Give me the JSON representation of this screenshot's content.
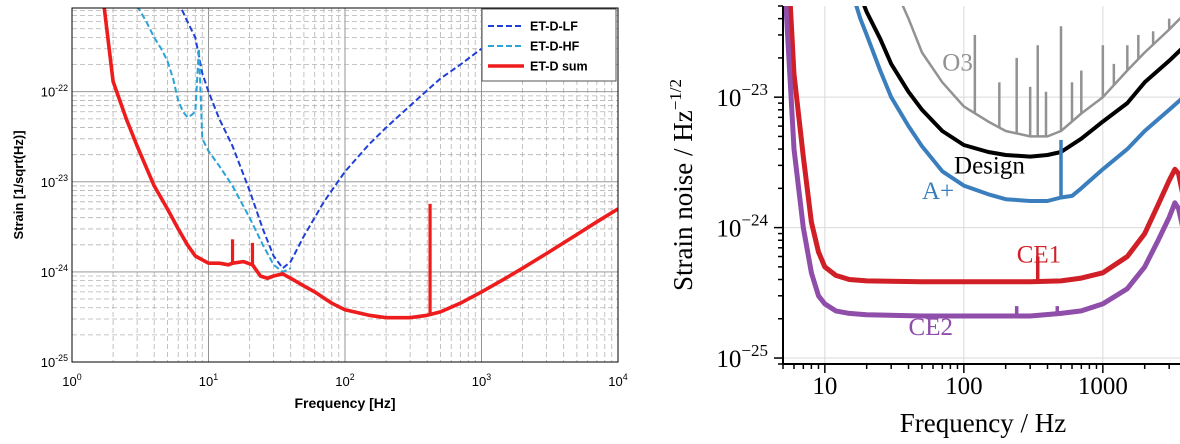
{
  "chart_data": [
    {
      "type": "line",
      "title": "",
      "xlabel": "Frequency [Hz]",
      "ylabel": "Strain [1/sqrt(Hz)]",
      "xscale": "log",
      "yscale": "log",
      "xlim": [
        1,
        10000
      ],
      "ylim": [
        1e-25,
        8.5e-22
      ],
      "grid": true,
      "legend": "top-right",
      "x_ticks": [
        {
          "v": 1,
          "base": "10",
          "exp": "0"
        },
        {
          "v": 10,
          "base": "10",
          "exp": "1"
        },
        {
          "v": 100,
          "base": "10",
          "exp": "2"
        },
        {
          "v": 1000,
          "base": "10",
          "exp": "3"
        },
        {
          "v": 10000,
          "base": "10",
          "exp": "4"
        }
      ],
      "y_ticks": [
        {
          "v": 1e-25,
          "base": "10",
          "exp": "-25"
        },
        {
          "v": 1e-24,
          "base": "10",
          "exp": "-24"
        },
        {
          "v": 1e-23,
          "base": "10",
          "exp": "-23"
        },
        {
          "v": 1e-22,
          "base": "10",
          "exp": "-22"
        }
      ],
      "series": [
        {
          "name": "ET-D-LF",
          "color": "#1f3fd8",
          "dash": true,
          "points": [
            [
              6,
              1e-21
            ],
            [
              7,
              6e-22
            ],
            [
              8,
              4e-22
            ],
            [
              9,
              1.6e-22
            ],
            [
              10,
              1e-22
            ],
            [
              12,
              5e-23
            ],
            [
              15,
              2.5e-23
            ],
            [
              20,
              8e-24
            ],
            [
              25,
              3e-24
            ],
            [
              30,
              1.5e-24
            ],
            [
              35,
              1.1e-24
            ],
            [
              40,
              1.3e-24
            ],
            [
              50,
              2.5e-24
            ],
            [
              70,
              6e-24
            ],
            [
              100,
              1.3e-23
            ],
            [
              150,
              2.6e-23
            ],
            [
              200,
              4e-23
            ],
            [
              300,
              7e-23
            ],
            [
              500,
              1.4e-22
            ],
            [
              700,
              2e-22
            ],
            [
              1000,
              3e-22
            ]
          ]
        },
        {
          "name": "ET-D-HF",
          "color": "#2aa3d6",
          "dash": true,
          "points": [
            [
              3,
              9e-22
            ],
            [
              3.5,
              6e-22
            ],
            [
              4,
              4e-22
            ],
            [
              4.5,
              3e-22
            ],
            [
              5,
              2.2e-22
            ],
            [
              5.5,
              1.4e-22
            ],
            [
              6,
              8e-23
            ],
            [
              6.5,
              6e-23
            ],
            [
              7,
              5.2e-23
            ],
            [
              7.5,
              5.5e-23
            ],
            [
              8,
              6e-23
            ],
            [
              8.5,
              3e-22
            ],
            [
              9,
              3e-23
            ],
            [
              10,
              2.2e-23
            ],
            [
              12,
              1.5e-23
            ],
            [
              15,
              9e-24
            ],
            [
              20,
              4e-24
            ],
            [
              25,
              2e-24
            ],
            [
              30,
              1.2e-24
            ],
            [
              35,
              1e-24
            ],
            [
              40,
              1.1e-24
            ]
          ]
        },
        {
          "name": "ET-D sum",
          "color": "#ee1c1c",
          "dash": false,
          "points": [
            [
              1.7,
              1e-21
            ],
            [
              2,
              1.3e-22
            ],
            [
              2.5,
              5e-23
            ],
            [
              3,
              2.5e-23
            ],
            [
              4,
              9e-24
            ],
            [
              5,
              5e-24
            ],
            [
              6,
              3e-24
            ],
            [
              7,
              2e-24
            ],
            [
              8,
              1.5e-24
            ],
            [
              10,
              1.25e-24
            ],
            [
              12,
              1.25e-24
            ],
            [
              14,
              1.2e-24
            ],
            [
              15,
              1.25e-24
            ],
            [
              18,
              1.3e-24
            ],
            [
              21,
              1.2e-24
            ],
            [
              24,
              9e-25
            ],
            [
              27,
              8.5e-25
            ],
            [
              30,
              9e-25
            ],
            [
              35,
              9.5e-25
            ],
            [
              40,
              8.5e-25
            ],
            [
              50,
              7e-25
            ],
            [
              60,
              6e-25
            ],
            [
              80,
              4.5e-25
            ],
            [
              100,
              3.8e-25
            ],
            [
              150,
              3.3e-25
            ],
            [
              200,
              3.1e-25
            ],
            [
              300,
              3.1e-25
            ],
            [
              400,
              3.3e-25
            ],
            [
              500,
              3.6e-25
            ],
            [
              700,
              4.5e-25
            ],
            [
              1000,
              6e-25
            ],
            [
              1500,
              8.5e-25
            ],
            [
              2000,
              1.1e-24
            ],
            [
              3000,
              1.6e-24
            ],
            [
              5000,
              2.6e-24
            ],
            [
              7000,
              3.6e-24
            ],
            [
              10000,
              5e-24
            ]
          ]
        }
      ],
      "spikes": [
        {
          "x": 15,
          "base": 1.2e-24,
          "top": 2.3e-24
        },
        {
          "x": 21,
          "base": 1.2e-24,
          "top": 2.1e-24
        },
        {
          "x": 420,
          "base": 3.4e-25,
          "top": 5.7e-24
        }
      ]
    },
    {
      "type": "line",
      "title": "",
      "xlabel": "Frequency / Hz",
      "ylabel_text": "Strain noise / Hz",
      "ylabel_exp": "−1/2",
      "xscale": "log",
      "yscale": "log",
      "xlim": [
        5,
        5000
      ],
      "ylim": [
        9e-26,
        5e-23
      ],
      "grid": true,
      "x_ticks": [
        {
          "v": 10,
          "label": "10"
        },
        {
          "v": 100,
          "label": "100"
        },
        {
          "v": 1000,
          "label": "1000"
        }
      ],
      "y_ticks": [
        {
          "v": 1e-25,
          "base": "10",
          "exp": "−25"
        },
        {
          "v": 1e-24,
          "base": "10",
          "exp": "−24"
        },
        {
          "v": 1e-23,
          "base": "10",
          "exp": "−23"
        }
      ],
      "series": [
        {
          "name": "O3",
          "color": "#929292",
          "points": [
            [
              35,
              5.5e-23
            ],
            [
              40,
              4e-23
            ],
            [
              50,
              2.2e-23
            ],
            [
              70,
              1.3e-23
            ],
            [
              100,
              8.5e-24
            ],
            [
              150,
              6.5e-24
            ],
            [
              200,
              5.5e-24
            ],
            [
              300,
              5e-24
            ],
            [
              400,
              5e-24
            ],
            [
              500,
              5.5e-24
            ],
            [
              700,
              7.5e-24
            ],
            [
              1000,
              1e-23
            ],
            [
              1500,
              1.6e-23
            ],
            [
              2000,
              2.2e-23
            ],
            [
              3000,
              3.3e-23
            ],
            [
              4000,
              4.5e-23
            ],
            [
              5000,
              5.5e-23
            ]
          ],
          "spikes": [
            {
              "x": 120,
              "top": 3e-23
            },
            {
              "x": 180,
              "top": 1.3e-23
            },
            {
              "x": 240,
              "top": 2e-23
            },
            {
              "x": 300,
              "top": 1.2e-23
            },
            {
              "x": 340,
              "top": 2.5e-23
            },
            {
              "x": 390,
              "top": 1.1e-23
            },
            {
              "x": 500,
              "top": 3.5e-23
            },
            {
              "x": 600,
              "top": 1.3e-23
            },
            {
              "x": 700,
              "top": 1.6e-23
            },
            {
              "x": 1000,
              "top": 2.5e-23
            },
            {
              "x": 1200,
              "top": 1.8e-23
            },
            {
              "x": 1500,
              "top": 2.5e-23
            },
            {
              "x": 1800,
              "top": 3e-23
            },
            {
              "x": 2300,
              "top": 3.2e-23
            },
            {
              "x": 3000,
              "top": 4e-23
            }
          ]
        },
        {
          "name": "Design",
          "color": "#000000",
          "points": [
            [
              18,
              6e-23
            ],
            [
              20,
              4.5e-23
            ],
            [
              25,
              2.8e-23
            ],
            [
              30,
              1.8e-23
            ],
            [
              40,
              1.1e-23
            ],
            [
              50,
              8e-24
            ],
            [
              70,
              5.5e-24
            ],
            [
              100,
              4.3e-24
            ],
            [
              150,
              3.8e-24
            ],
            [
              200,
              3.6e-24
            ],
            [
              300,
              3.5e-24
            ],
            [
              400,
              3.6e-24
            ],
            [
              500,
              3.8e-24
            ],
            [
              700,
              4.8e-24
            ],
            [
              1000,
              6.5e-24
            ],
            [
              1500,
              9e-24
            ],
            [
              2000,
              1.3e-23
            ],
            [
              3000,
              1.9e-23
            ],
            [
              5000,
              3.2e-23
            ]
          ]
        },
        {
          "name": "A+",
          "color": "#3a7ebd",
          "points": [
            [
              16,
              6e-23
            ],
            [
              18,
              4e-23
            ],
            [
              20,
              3e-23
            ],
            [
              25,
              1.6e-23
            ],
            [
              30,
              1e-23
            ],
            [
              40,
              6e-24
            ],
            [
              50,
              4.2e-24
            ],
            [
              70,
              2.7e-24
            ],
            [
              100,
              2.1e-24
            ],
            [
              150,
              1.8e-24
            ],
            [
              200,
              1.65e-24
            ],
            [
              300,
              1.6e-24
            ],
            [
              400,
              1.6e-24
            ],
            [
              500,
              1.7e-24
            ],
            [
              600,
              1.75e-24
            ],
            [
              700,
              2e-24
            ],
            [
              1000,
              2.8e-24
            ],
            [
              1500,
              4e-24
            ],
            [
              2000,
              5.5e-24
            ],
            [
              3000,
              8e-24
            ],
            [
              5000,
              1.3e-23
            ]
          ],
          "spikes": [
            {
              "x": 500,
              "base": 1.7e-24,
              "top": 4.7e-24
            }
          ]
        },
        {
          "name": "CE1",
          "color": "#d01f26",
          "points": [
            [
              5.6,
              6e-23
            ],
            [
              6,
              1.5e-23
            ],
            [
              7,
              3.5e-24
            ],
            [
              8,
              1.1e-24
            ],
            [
              9,
              6.5e-25
            ],
            [
              10,
              5e-25
            ],
            [
              12,
              4.3e-25
            ],
            [
              15,
              4e-25
            ],
            [
              20,
              3.9e-25
            ],
            [
              50,
              3.85e-25
            ],
            [
              100,
              3.85e-25
            ],
            [
              300,
              3.85e-25
            ],
            [
              500,
              3.9e-25
            ],
            [
              700,
              4.1e-25
            ],
            [
              1000,
              4.5e-25
            ],
            [
              1500,
              6e-25
            ],
            [
              2000,
              9e-25
            ],
            [
              2500,
              1.5e-24
            ],
            [
              3000,
              2.3e-24
            ],
            [
              3300,
              2.8e-24
            ],
            [
              3500,
              2.6e-24
            ],
            [
              4000,
              1.3e-24
            ],
            [
              4500,
              1e-24
            ],
            [
              5000,
              1.2e-24
            ]
          ],
          "spikes": [
            {
              "x": 340,
              "base": 3.9e-25,
              "top": 6e-25
            }
          ]
        },
        {
          "name": "CE2",
          "color": "#8e4ea9",
          "points": [
            [
              5.2,
              6e-23
            ],
            [
              5.6,
              1.5e-23
            ],
            [
              6,
              4e-24
            ],
            [
              7,
              1e-24
            ],
            [
              8,
              4.5e-25
            ],
            [
              9,
              3e-25
            ],
            [
              10,
              2.6e-25
            ],
            [
              12,
              2.3e-25
            ],
            [
              15,
              2.2e-25
            ],
            [
              20,
              2.15e-25
            ],
            [
              50,
              2.1e-25
            ],
            [
              100,
              2.1e-25
            ],
            [
              300,
              2.1e-25
            ],
            [
              500,
              2.2e-25
            ],
            [
              700,
              2.3e-25
            ],
            [
              1000,
              2.6e-25
            ],
            [
              1500,
              3.4e-25
            ],
            [
              2000,
              5e-25
            ],
            [
              2500,
              8e-25
            ],
            [
              3000,
              1.2e-24
            ],
            [
              3300,
              1.55e-24
            ],
            [
              3500,
              1.4e-24
            ],
            [
              4000,
              7.5e-25
            ],
            [
              4500,
              5.5e-25
            ],
            [
              5000,
              6e-25
            ]
          ],
          "spikes": [
            {
              "x": 240,
              "base": 2.1e-25,
              "top": 2.5e-25
            },
            {
              "x": 470,
              "base": 2.2e-25,
              "top": 2.5e-25
            }
          ]
        }
      ],
      "annotations": [
        {
          "text": "O3",
          "x": 70,
          "y": 1.6e-23,
          "color": "#929292"
        },
        {
          "text": "Design",
          "x": 85,
          "y": 2.6e-24,
          "color": "#000000"
        },
        {
          "text": "A+",
          "x": 50,
          "y": 1.65e-24,
          "color": "#3a7ebd"
        },
        {
          "text": "CE1",
          "x": 240,
          "y": 5.4e-25,
          "color": "#d01f26"
        },
        {
          "text": "CE2",
          "x": 40,
          "y": 1.5e-25,
          "color": "#8e4ea9"
        }
      ]
    }
  ]
}
